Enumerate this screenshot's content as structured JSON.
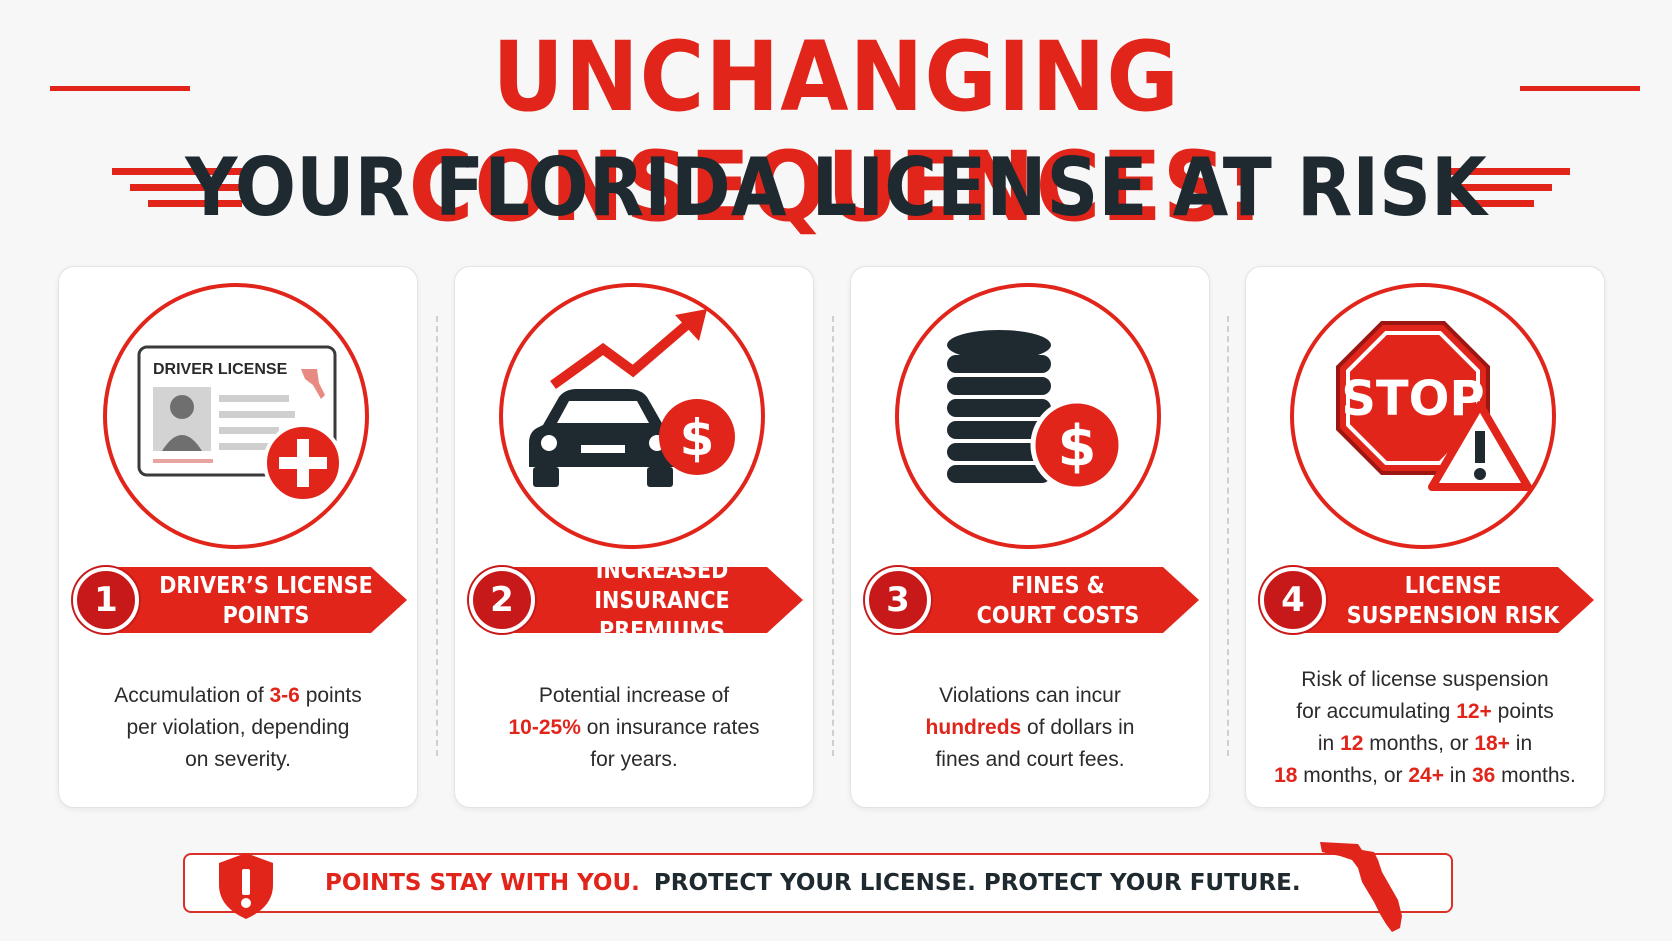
{
  "title": {
    "line1": "UNCHANGING CONSEQUENCES:",
    "line2": "YOUR FLORIDA LICENSE AT RISK"
  },
  "colors": {
    "accent": "#e1251b",
    "dark": "#1f2a30",
    "card_bg": "#ffffff"
  },
  "cards": [
    {
      "number": "1",
      "icon": "driver-license-plus-icon",
      "icon_text": "DRIVER LICENSE",
      "title_lines": [
        "DRIVER’S LICENSE",
        "POINTS"
      ],
      "desc": [
        [
          "Accumulation of ",
          "3-6",
          " points"
        ],
        [
          "per violation, depending"
        ],
        [
          "on severity."
        ]
      ]
    },
    {
      "number": "2",
      "icon": "car-rising-dollar-icon",
      "title_lines": [
        "INCREASED",
        "INSURANCE PREMIUMS"
      ],
      "desc": [
        [
          "Potential increase of"
        ],
        [
          "",
          "10-25%",
          " on insurance rates"
        ],
        [
          "for years."
        ]
      ]
    },
    {
      "number": "3",
      "icon": "coins-dollar-icon",
      "title_lines": [
        "FINES &",
        "COURT COSTS"
      ],
      "desc": [
        [
          "Violations can incur"
        ],
        [
          "",
          "hundreds",
          " of dollars in"
        ],
        [
          "fines and court fees."
        ]
      ]
    },
    {
      "number": "4",
      "icon": "stop-sign-warning-icon",
      "icon_text": "STOP",
      "title_lines": [
        "LICENSE",
        "SUSPENSION RISK"
      ],
      "desc": [
        [
          "Risk of license suspension"
        ],
        [
          "for accumulating ",
          "12+",
          " points"
        ],
        [
          "in ",
          "12",
          " months, or ",
          "18+",
          " in"
        ],
        [
          "",
          "18",
          " months, or ",
          "24+",
          " in ",
          "36",
          " months."
        ]
      ]
    }
  ],
  "footer": {
    "red_text": "POINTS STAY WITH YOU.",
    "dark_text": "PROTECT YOUR LICENSE. PROTECT YOUR FUTURE.",
    "left_icon": "shield-alert-icon",
    "right_icon": "florida-map-icon"
  }
}
